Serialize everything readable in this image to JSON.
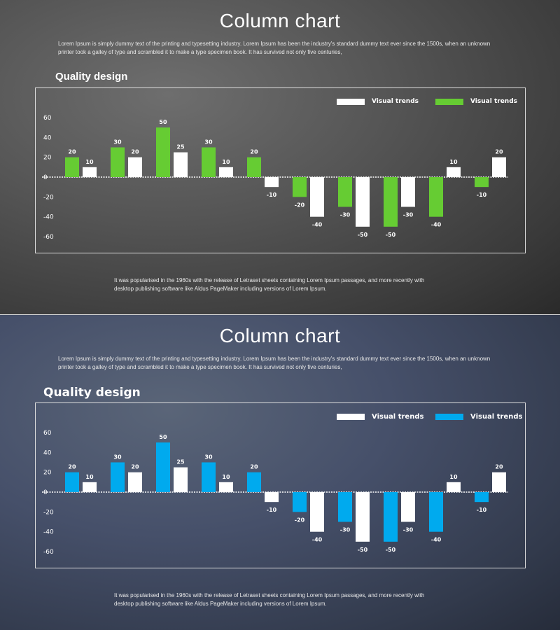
{
  "slides": [
    {
      "title": "Column chart",
      "intro": "Lorem Ipsum is simply dummy text of the printing and typesetting industry. Lorem Ipsum has been the industry's standard dummy text ever since the 1500s, when an unknown printer took a galley of type and scrambled it to make a type specimen book. It has survived not only five centuries,",
      "heading": "Quality design",
      "footer": "It was popularised in the 1960s with the release of Letraset sheets containing Lorem Ipsum passages, and more recently with desktop publishing software like Aldus PageMaker including versions of Lorem Ipsum.",
      "accent": "#66cc33"
    },
    {
      "title": "Column chart",
      "intro": "Lorem Ipsum is simply dummy text of the printing and typesetting industry. Lorem Ipsum has been the industry's standard dummy text ever since the 1500s, when an unknown printer took a galley of type and scrambled it to make a type specimen book. It has survived not only five centuries,",
      "heading": "Quality design",
      "footer": "It was popularised in the 1960s with the release of Letraset sheets containing Lorem Ipsum passages, and more recently with desktop publishing software like Aldus PageMaker including versions of Lorem Ipsum.",
      "accent": "#00aaee"
    }
  ],
  "chart_data": [
    {
      "type": "bar",
      "ylim": [
        -60,
        60
      ],
      "yticks": [
        "60",
        "40",
        "20",
        "0",
        "-20",
        "-40",
        "-60"
      ],
      "yticks_values": [
        60,
        40,
        20,
        0,
        -20,
        -40,
        -60
      ],
      "grid": false,
      "legend": "top-right",
      "series": [
        {
          "name": "Visual trends",
          "color": "#66cc33",
          "values": [
            20,
            30,
            50,
            30,
            20,
            -20,
            -30,
            -50,
            -40,
            -10
          ]
        },
        {
          "name": "Visual trends",
          "color": "#ffffff",
          "values": [
            10,
            20,
            25,
            10,
            -10,
            -40,
            -50,
            -30,
            10,
            20
          ]
        }
      ],
      "legend_order": [
        1,
        0
      ]
    },
    {
      "type": "bar",
      "ylim": [
        -60,
        60
      ],
      "yticks": [
        "60",
        "40",
        "20",
        "0",
        "-20",
        "-40",
        "-60"
      ],
      "yticks_values": [
        60,
        40,
        20,
        0,
        -20,
        -40,
        -60
      ],
      "grid": false,
      "legend": "top-right",
      "series": [
        {
          "name": "Visual trends",
          "color": "#00aaee",
          "values": [
            20,
            30,
            50,
            30,
            20,
            -20,
            -30,
            -50,
            -40,
            -10
          ]
        },
        {
          "name": "Visual trends",
          "color": "#ffffff",
          "values": [
            10,
            20,
            25,
            10,
            -10,
            -40,
            -50,
            -30,
            10,
            20
          ]
        }
      ],
      "legend_order": [
        1,
        0
      ]
    }
  ]
}
